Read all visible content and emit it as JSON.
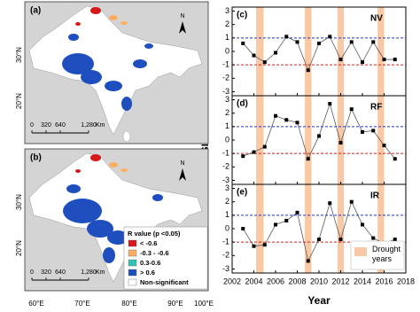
{
  "maps": {
    "panels": [
      "(a)",
      "(b)"
    ],
    "north": "N",
    "lat_ticks": [
      "30°N",
      "20°N"
    ],
    "lon_ticks": [
      "60°E",
      "70°E",
      "80°E",
      "90°E",
      "100°E"
    ],
    "scale": {
      "labels": [
        "0",
        "320",
        "640",
        "1,280"
      ],
      "unit": "Km"
    },
    "legend": {
      "title": "R value (p <0.05)",
      "items": [
        {
          "label": "< -0.6",
          "color": "#d7191c"
        },
        {
          "label": "-0.3 - -0.6",
          "color": "#fdae61"
        },
        {
          "label": "0.3-0.6",
          "color": "#2ec4b6"
        },
        {
          "label": "> 0.6",
          "color": "#1f4fbf"
        },
        {
          "label": "Non-significant",
          "color": "#ffffff"
        }
      ]
    }
  },
  "figure": {
    "ylabel": "PDSI",
    "xlabel": "Year"
  },
  "chart_data": [
    {
      "type": "line",
      "label": "(c)",
      "name": "NV",
      "x": [
        2003,
        2004,
        2005,
        2006,
        2007,
        2008,
        2009,
        2010,
        2011,
        2012,
        2013,
        2014,
        2015,
        2016,
        2017
      ],
      "values": [
        0.6,
        -0.3,
        -0.8,
        -0.1,
        1.1,
        0.7,
        -1.4,
        0.6,
        1.1,
        -0.6,
        0.7,
        -0.8,
        0.7,
        -0.6,
        -0.6
      ],
      "ylim": [
        -3.3,
        3.3
      ],
      "yticks": [
        -3,
        -2,
        -1,
        0,
        1,
        2,
        3
      ],
      "ref_lines": [
        {
          "value": 1,
          "color": "#2233cc"
        },
        {
          "value": -1,
          "color": "#cc2222"
        }
      ],
      "bands": [
        [
          2004.2,
          2004.9
        ],
        [
          2008.7,
          2009.3
        ],
        [
          2011.7,
          2012.3
        ],
        [
          2015.4,
          2016.0
        ]
      ],
      "band_color": "#f9c9a6"
    },
    {
      "type": "line",
      "label": "(d)",
      "name": "RF",
      "x": [
        2003,
        2004,
        2005,
        2006,
        2007,
        2008,
        2009,
        2010,
        2011,
        2012,
        2013,
        2014,
        2015,
        2016,
        2017
      ],
      "values": [
        -1.2,
        -0.9,
        -0.5,
        1.8,
        1.5,
        1.3,
        -1.4,
        0.3,
        2.7,
        -0.2,
        2.3,
        0.6,
        0.7,
        -0.4,
        -1.4
      ],
      "ylim": [
        -3.3,
        3.3
      ],
      "yticks": [
        -3,
        -2,
        -1,
        0,
        1,
        2,
        3
      ],
      "ref_lines": [
        {
          "value": 1,
          "color": "#2233cc"
        },
        {
          "value": -1,
          "color": "#cc2222"
        }
      ],
      "bands": [
        [
          2004.2,
          2004.9
        ],
        [
          2008.7,
          2009.3
        ],
        [
          2011.7,
          2012.3
        ],
        [
          2015.4,
          2016.0
        ]
      ],
      "band_color": "#f9c9a6"
    },
    {
      "type": "line",
      "label": "(e)",
      "name": "IR",
      "x": [
        2003,
        2004,
        2005,
        2006,
        2007,
        2008,
        2009,
        2010,
        2011,
        2012,
        2013,
        2014,
        2015,
        2016,
        2017
      ],
      "values": [
        0.0,
        -1.3,
        -1.2,
        0.3,
        0.6,
        1.2,
        -2.4,
        -0.8,
        1.9,
        -0.8,
        2.0,
        0.3,
        -0.7,
        -1.1,
        -0.8
      ],
      "ylim": [
        -3.3,
        3.3
      ],
      "yticks": [
        -3,
        -2,
        -1,
        0,
        1,
        2,
        3
      ],
      "ref_lines": [
        {
          "value": 1,
          "color": "#2233cc"
        },
        {
          "value": -1,
          "color": "#cc2222"
        }
      ],
      "bands": [
        [
          2004.2,
          2004.9
        ],
        [
          2008.7,
          2009.3
        ],
        [
          2011.7,
          2012.3
        ],
        [
          2015.4,
          2016.0
        ]
      ],
      "band_color": "#f9c9a6",
      "band_label": "Drought years",
      "xlim": [
        2002,
        2018
      ],
      "xticks": [
        2002,
        2004,
        2006,
        2008,
        2010,
        2012,
        2014,
        2016,
        2018
      ]
    }
  ]
}
